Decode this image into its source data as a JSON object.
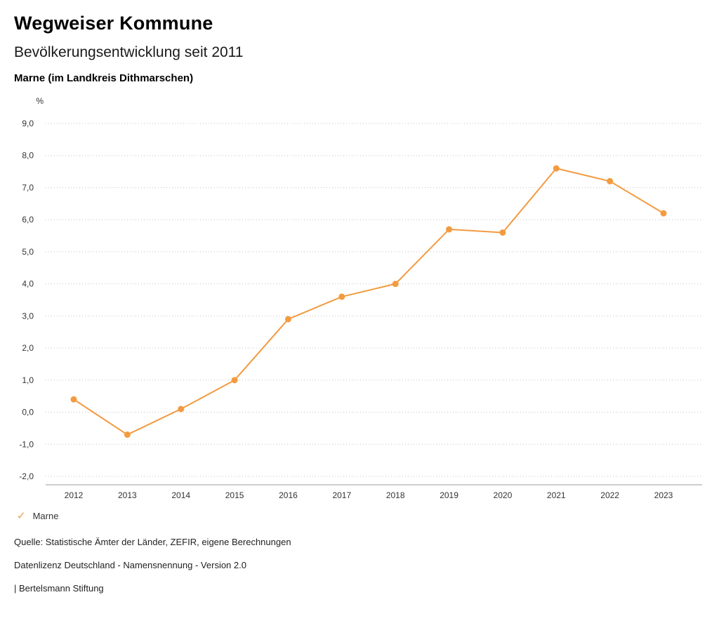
{
  "header": {
    "title": "Wegweiser Kommune",
    "subtitle": "Bevölkerungsentwicklung seit 2011",
    "region": "Marne (im Landkreis Dithmarschen)"
  },
  "chart_data": {
    "type": "line",
    "title": "Bevölkerungsentwicklung seit 2011",
    "unit_label": "%",
    "categories": [
      "2012",
      "2013",
      "2014",
      "2015",
      "2016",
      "2017",
      "2018",
      "2019",
      "2020",
      "2021",
      "2022",
      "2023"
    ],
    "series": [
      {
        "name": "Marne",
        "values": [
          0.4,
          -0.7,
          0.1,
          1.0,
          2.9,
          3.6,
          4.0,
          5.7,
          5.6,
          7.6,
          7.2,
          6.2
        ]
      }
    ],
    "ylim": [
      -2.0,
      9.0
    ],
    "ytick_values": [
      9,
      8,
      7,
      6,
      5,
      4,
      3,
      2,
      1,
      0,
      -1,
      -2
    ],
    "ytick_labels": [
      "9,0",
      "8,0",
      "7,0",
      "6,0",
      "5,0",
      "4,0",
      "3,0",
      "2,0",
      "1,0",
      "0,0",
      "-1,0",
      "-2,0"
    ],
    "grid": "horizontal-dotted",
    "legend_position": "bottom-left",
    "line_color": "#f29b40",
    "grid_color": "#c4c4c4",
    "axis_color": "#9b9b9b",
    "tick_text_color": "#333333"
  },
  "legend": {
    "check_icon": "✓",
    "label": "Marne"
  },
  "footer": {
    "source": "Quelle: Statistische Ämter der Länder, ZEFIR, eigene Berechnungen",
    "license": "Datenlizenz Deutschland - Namensnennung - Version 2.0",
    "attribution": "| Bertelsmann Stiftung"
  }
}
